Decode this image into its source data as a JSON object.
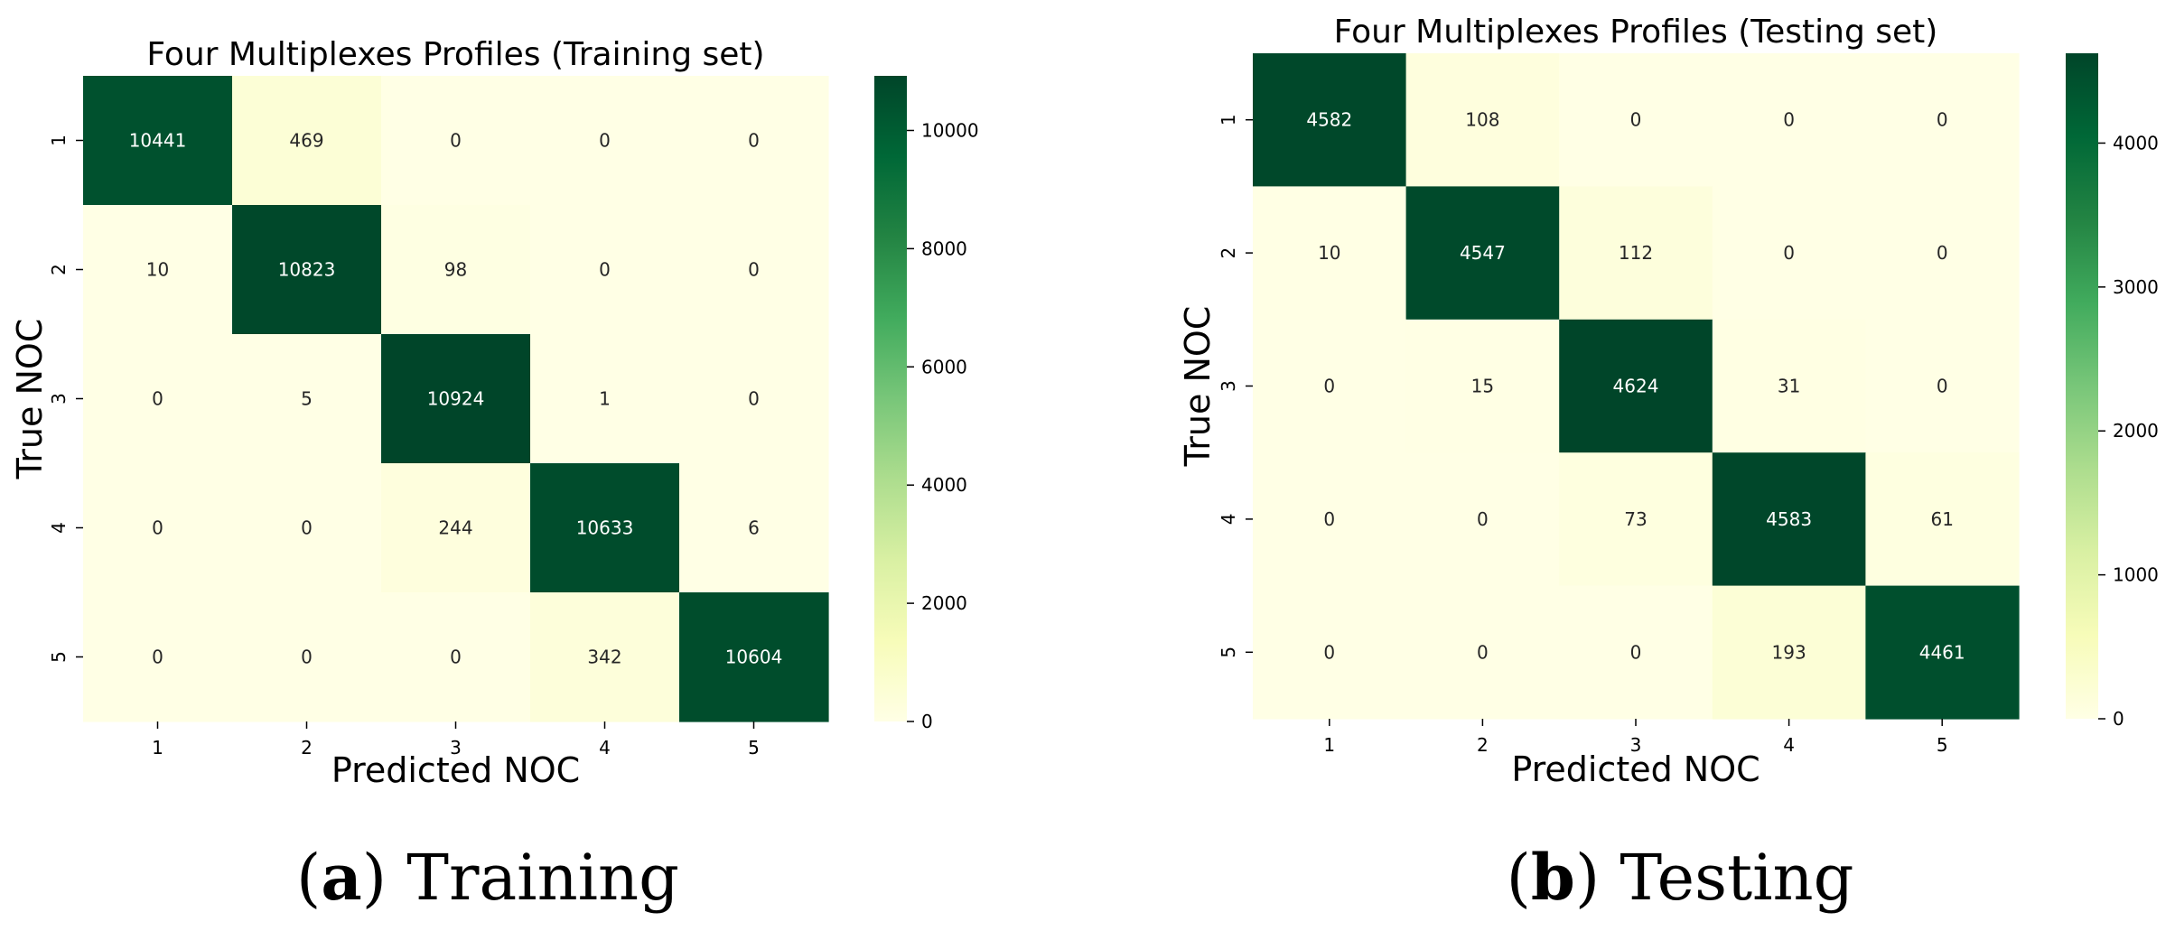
{
  "chart_data": [
    {
      "type": "heatmap",
      "title": "Four Multiplexes Profiles (Training set)",
      "xlabel": "Predicted NOC",
      "ylabel": "True NOC",
      "x_categories": [
        "1",
        "2",
        "3",
        "4",
        "5"
      ],
      "y_categories": [
        "1",
        "2",
        "3",
        "4",
        "5"
      ],
      "values": [
        [
          10441,
          469,
          0,
          0,
          0
        ],
        [
          10,
          10823,
          98,
          0,
          0
        ],
        [
          0,
          5,
          10924,
          1,
          0
        ],
        [
          0,
          0,
          244,
          10633,
          6
        ],
        [
          0,
          0,
          0,
          342,
          10604
        ]
      ],
      "colorbar": {
        "min": 0,
        "max": 10924,
        "ticks": [
          0,
          2000,
          4000,
          6000,
          8000,
          10000
        ],
        "colormap": "YlGn"
      },
      "caption_letter": "a",
      "caption_text": "Training"
    },
    {
      "type": "heatmap",
      "title": "Four Multiplexes Profiles (Testing set)",
      "xlabel": "Predicted NOC",
      "ylabel": "True NOC",
      "x_categories": [
        "1",
        "2",
        "3",
        "4",
        "5"
      ],
      "y_categories": [
        "1",
        "2",
        "3",
        "4",
        "5"
      ],
      "values": [
        [
          4582,
          108,
          0,
          0,
          0
        ],
        [
          10,
          4547,
          112,
          0,
          0
        ],
        [
          0,
          15,
          4624,
          31,
          0
        ],
        [
          0,
          0,
          73,
          4583,
          61
        ],
        [
          0,
          0,
          0,
          193,
          4461
        ]
      ],
      "colorbar": {
        "min": 0,
        "max": 4624,
        "ticks": [
          0,
          1000,
          2000,
          3000,
          4000
        ],
        "colormap": "YlGn"
      },
      "caption_letter": "b",
      "caption_text": "Testing"
    }
  ],
  "captions": [
    {
      "open": "(",
      "letter": "a",
      "close": ")",
      "text": "Training"
    },
    {
      "open": "(",
      "letter": "b",
      "close": ")",
      "text": "Testing"
    }
  ]
}
